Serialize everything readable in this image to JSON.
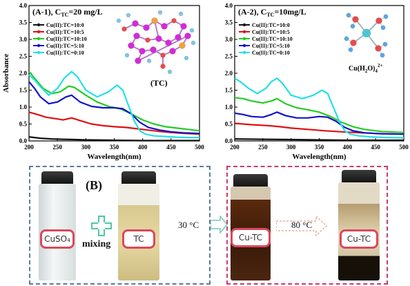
{
  "chart_data": [
    {
      "type": "line",
      "panel_label": "(A-1)",
      "title_conc_prefix": "C",
      "title_conc_sub": "TC",
      "title_conc_value": "=20 mg/L",
      "xlabel": "Wavelength(nm)",
      "ylabel": "Absorbance",
      "xlim": [
        200,
        500
      ],
      "ylim": [
        0,
        4.0
      ],
      "xticks": [
        "200",
        "250",
        "300",
        "350",
        "400",
        "450",
        "500"
      ],
      "yticks": [
        "0.0",
        "0.5",
        "1.0",
        "1.5",
        "2.0",
        "2.5",
        "3.0",
        "3.5",
        "4.0"
      ],
      "molecule_label": "(TC)",
      "legend_position": "top-left",
      "series": [
        {
          "name": "Cu(II):TC=10:0",
          "color": "#111111",
          "x": [
            200,
            210,
            220,
            240,
            260,
            280,
            300,
            350,
            400,
            450,
            500
          ],
          "y": [
            0.12,
            0.1,
            0.08,
            0.06,
            0.05,
            0.04,
            0.03,
            0.02,
            0.01,
            0.01,
            0.01
          ]
        },
        {
          "name": "Cu(II):TC=10:5",
          "color": "#e01010",
          "x": [
            200,
            215,
            230,
            250,
            260,
            275,
            290,
            310,
            330,
            350,
            370,
            390,
            410,
            430,
            450,
            475,
            500
          ],
          "y": [
            0.85,
            0.78,
            0.7,
            0.65,
            0.62,
            0.68,
            0.6,
            0.5,
            0.45,
            0.42,
            0.4,
            0.36,
            0.32,
            0.28,
            0.25,
            0.22,
            0.2
          ]
        },
        {
          "name": "Cu(II):TC=10:10",
          "color": "#22cc22",
          "x": [
            200,
            210,
            225,
            240,
            255,
            270,
            280,
            300,
            320,
            340,
            360,
            380,
            400,
            420,
            440,
            460,
            480,
            500
          ],
          "y": [
            2.05,
            1.85,
            1.55,
            1.4,
            1.45,
            1.62,
            1.58,
            1.35,
            1.15,
            1.02,
            0.95,
            0.8,
            0.62,
            0.5,
            0.42,
            0.38,
            0.34,
            0.3
          ]
        },
        {
          "name": "Cu(II):TC=5:10",
          "color": "#1111cc",
          "x": [
            200,
            210,
            220,
            235,
            250,
            265,
            275,
            290,
            310,
            330,
            350,
            365,
            380,
            395,
            410,
            430,
            450,
            470,
            500
          ],
          "y": [
            1.75,
            1.55,
            1.3,
            1.1,
            1.15,
            1.3,
            1.35,
            1.15,
            1.02,
            0.98,
            0.98,
            0.95,
            0.8,
            0.55,
            0.4,
            0.32,
            0.27,
            0.24,
            0.22
          ]
        },
        {
          "name": "Cu(II):TC=0:10",
          "color": "#22e0e8",
          "x": [
            200,
            210,
            220,
            235,
            250,
            262,
            275,
            285,
            300,
            320,
            340,
            355,
            365,
            375,
            385,
            395,
            405,
            420,
            440,
            460,
            480,
            500
          ],
          "y": [
            1.95,
            1.8,
            1.6,
            1.35,
            1.55,
            1.85,
            2.05,
            1.9,
            1.5,
            1.3,
            1.45,
            1.65,
            1.5,
            1.05,
            0.6,
            0.3,
            0.2,
            0.15,
            0.13,
            0.11,
            0.1,
            0.1
          ]
        }
      ]
    },
    {
      "type": "line",
      "panel_label": "(A-2)",
      "title_conc_prefix": "C",
      "title_conc_sub": "TC",
      "title_conc_value": "=10mg/L",
      "xlabel": "Wavelength(nm)",
      "ylabel": "",
      "xlim": [
        200,
        500
      ],
      "ylim": [
        0,
        4.0
      ],
      "xticks": [
        "200",
        "250",
        "300",
        "350",
        "400",
        "450",
        "500"
      ],
      "yticks": [
        "0.0",
        "0.5",
        "1.0",
        "1.5",
        "2.0",
        "2.5",
        "3.0",
        "3.5",
        "4.0"
      ],
      "molecule_label_main": "Cu(H",
      "molecule_label_sub2": "2",
      "molecule_label_mid": "O)",
      "molecule_label_sub4": "4",
      "molecule_label_sup": "2+",
      "legend_position": "top-left",
      "series": [
        {
          "name": "Cu(II):TC=10:0",
          "color": "#111111",
          "x": [
            200,
            250,
            300,
            350,
            400,
            450,
            500
          ],
          "y": [
            0.06,
            0.05,
            0.04,
            0.03,
            0.02,
            0.02,
            0.02
          ]
        },
        {
          "name": "Cu(II):TC=10:5",
          "color": "#e01010",
          "x": [
            200,
            230,
            260,
            280,
            300,
            330,
            360,
            400,
            450,
            500
          ],
          "y": [
            0.52,
            0.48,
            0.45,
            0.42,
            0.38,
            0.34,
            0.3,
            0.26,
            0.22,
            0.2
          ]
        },
        {
          "name": "Cu(II):TC=10:10",
          "color": "#22cc22",
          "x": [
            200,
            215,
            230,
            250,
            265,
            275,
            290,
            310,
            330,
            350,
            370,
            390,
            410,
            430,
            460,
            500
          ],
          "y": [
            1.28,
            1.25,
            1.18,
            1.12,
            1.18,
            1.25,
            1.1,
            0.98,
            0.92,
            0.85,
            0.72,
            0.55,
            0.42,
            0.34,
            0.28,
            0.25
          ]
        },
        {
          "name": "Cu(II):TC=5:10",
          "color": "#1111cc",
          "x": [
            200,
            215,
            230,
            250,
            265,
            275,
            290,
            310,
            330,
            350,
            365,
            380,
            395,
            410,
            430,
            460,
            500
          ],
          "y": [
            0.82,
            0.78,
            0.72,
            0.7,
            0.78,
            0.85,
            0.75,
            0.68,
            0.68,
            0.72,
            0.7,
            0.58,
            0.4,
            0.3,
            0.24,
            0.21,
            0.2
          ]
        },
        {
          "name": "Cu(II):TC=0:10",
          "color": "#22e0e8",
          "x": [
            200,
            210,
            225,
            240,
            255,
            265,
            275,
            285,
            300,
            320,
            340,
            355,
            365,
            375,
            385,
            395,
            405,
            420,
            440,
            470,
            500
          ],
          "y": [
            1.85,
            1.75,
            1.55,
            1.4,
            1.55,
            1.75,
            1.85,
            1.7,
            1.35,
            1.25,
            1.35,
            1.5,
            1.4,
            1.0,
            0.6,
            0.3,
            0.2,
            0.15,
            0.12,
            0.1,
            0.09
          ]
        }
      ]
    }
  ],
  "panel_b": {
    "label": "(B)",
    "plus_label": "mixing",
    "step1_temp": "30 °C",
    "step2_temp": "80 °C",
    "vial_labels": [
      "CuSO₄",
      "TC",
      "Cu-TC",
      "Cu-TC"
    ],
    "colors": {
      "box_left": "#5b7a99",
      "box_right": "#c83a6e",
      "plus": "#4fc7a6",
      "arrow": "#78c7b8",
      "tag_border": "#d9495b"
    }
  }
}
